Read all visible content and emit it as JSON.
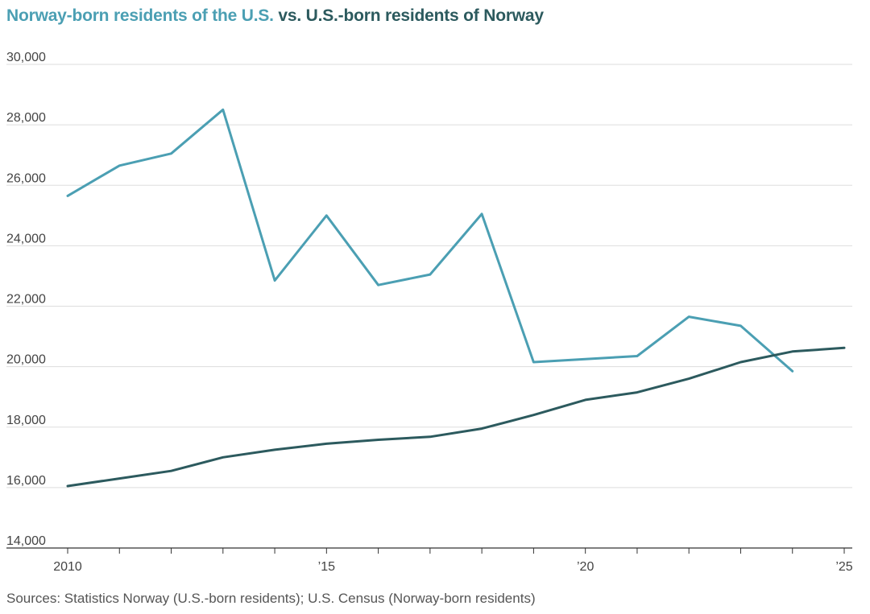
{
  "title": {
    "part1": "Norway-born residents of the U.S.",
    "part2": " vs. U.S.-born residents of Norway"
  },
  "source": "Sources: Statistics Norway (U.S.-born residents); U.S. Census (Norway-born residents)",
  "colors": {
    "series_norway_born_us": "#4b9fb3",
    "series_us_born_norway": "#2c5a5e",
    "grid": "#dddddd",
    "axis": "#333333"
  },
  "chart_data": {
    "type": "line",
    "title": "Norway-born residents of the U.S. vs. U.S.-born residents of Norway",
    "xlabel": "",
    "ylabel": "",
    "xlim": [
      2010,
      2025
    ],
    "ylim": [
      14000,
      30000
    ],
    "grid": true,
    "yticks": [
      {
        "value": 30000,
        "label": "30,000"
      },
      {
        "value": 28000,
        "label": "28,000"
      },
      {
        "value": 26000,
        "label": "26,000"
      },
      {
        "value": 24000,
        "label": "24,000"
      },
      {
        "value": 22000,
        "label": "22,000"
      },
      {
        "value": 20000,
        "label": "20,000"
      },
      {
        "value": 18000,
        "label": "18,000"
      },
      {
        "value": 16000,
        "label": "16,000"
      },
      {
        "value": 14000,
        "label": "14,000"
      }
    ],
    "xticks": [
      {
        "value": 2010,
        "label": "2010"
      },
      {
        "value": 2015,
        "label": "’15"
      },
      {
        "value": 2020,
        "label": "’20"
      },
      {
        "value": 2025,
        "label": "’25"
      }
    ],
    "minor_xticks": [
      2010,
      2011,
      2012,
      2013,
      2014,
      2015,
      2016,
      2017,
      2018,
      2019,
      2020,
      2021,
      2022,
      2023,
      2024,
      2025
    ],
    "series": [
      {
        "name": "Norway-born residents of the U.S.",
        "color": "#4b9fb3",
        "x": [
          2010,
          2011,
          2012,
          2013,
          2014,
          2015,
          2016,
          2017,
          2018,
          2019,
          2020,
          2021,
          2022,
          2023,
          2024
        ],
        "values": [
          25650,
          26650,
          27050,
          28500,
          22850,
          25000,
          22700,
          23050,
          25050,
          20150,
          20250,
          20350,
          21650,
          21350,
          19850
        ]
      },
      {
        "name": "U.S.-born residents of Norway",
        "color": "#2c5a5e",
        "x": [
          2010,
          2011,
          2012,
          2013,
          2014,
          2015,
          2016,
          2017,
          2018,
          2019,
          2020,
          2021,
          2022,
          2023,
          2024,
          2025
        ],
        "values": [
          16050,
          16300,
          16550,
          17000,
          17250,
          17450,
          17580,
          17680,
          17950,
          18400,
          18900,
          19150,
          19600,
          20150,
          20500,
          20620
        ]
      }
    ]
  }
}
